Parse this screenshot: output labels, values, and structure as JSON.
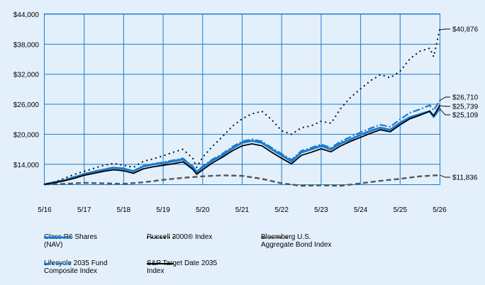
{
  "chart_data": {
    "type": "line",
    "x_ticks": [
      "5/16",
      "5/17",
      "5/18",
      "5/19",
      "5/20",
      "5/21",
      "5/22",
      "5/23",
      "5/24",
      "5/25",
      "5/26"
    ],
    "y_ticks": [
      "$14,000",
      "$20,000",
      "$26,000",
      "$32,000",
      "$38,000",
      "$44,000"
    ],
    "y_tick_values": [
      14000,
      20000,
      26000,
      32000,
      38000,
      44000
    ],
    "ylim": [
      10000,
      44000
    ],
    "xlim": [
      0,
      10
    ],
    "grid": true,
    "series": [
      {
        "key": "classr6",
        "name": "Class R6 Shares (NAV)",
        "name_lines": [
          "Class R6 Shares",
          "(NAV)"
        ],
        "color": "#1a7bd0",
        "style": "solid",
        "end_label": "$25,109",
        "x": [
          0,
          0.25,
          0.5,
          0.75,
          1,
          1.25,
          1.5,
          1.75,
          2,
          2.25,
          2.5,
          2.75,
          3,
          3.25,
          3.5,
          3.75,
          3.85,
          4,
          4.25,
          4.5,
          4.75,
          5,
          5.25,
          5.5,
          5.75,
          6,
          6.25,
          6.5,
          6.75,
          7,
          7.25,
          7.5,
          7.75,
          8,
          8.25,
          8.5,
          8.75,
          9,
          9.25,
          9.5,
          9.75,
          9.85,
          10
        ],
        "y": [
          10000,
          10400,
          10800,
          11400,
          12000,
          12500,
          12900,
          13300,
          13100,
          12600,
          13600,
          14000,
          14200,
          14600,
          15000,
          13400,
          12400,
          13400,
          14800,
          15800,
          17200,
          18300,
          18700,
          18300,
          17000,
          15800,
          14600,
          16400,
          17000,
          17700,
          17000,
          18200,
          19000,
          19900,
          20700,
          21300,
          20900,
          22300,
          23400,
          24000,
          24600,
          23500,
          25109
        ]
      },
      {
        "key": "russell",
        "name": "Russell 3000® Index",
        "name_lines": [
          "Russell 3000® Index"
        ],
        "color": "#111111",
        "style": "dotted",
        "end_label": "$40,876",
        "x": [
          0,
          0.25,
          0.5,
          0.75,
          1,
          1.25,
          1.5,
          1.75,
          2,
          2.25,
          2.5,
          2.75,
          3,
          3.25,
          3.5,
          3.75,
          3.85,
          4,
          4.25,
          4.5,
          4.75,
          5,
          5.25,
          5.5,
          5.75,
          6,
          6.25,
          6.5,
          6.75,
          7,
          7.25,
          7.5,
          7.75,
          8,
          8.25,
          8.5,
          8.75,
          9,
          9.25,
          9.5,
          9.75,
          9.85,
          10
        ],
        "y": [
          10000,
          10500,
          11200,
          12000,
          12600,
          13200,
          13800,
          14200,
          13800,
          13400,
          14600,
          15100,
          15700,
          16400,
          17000,
          15200,
          13400,
          15400,
          17600,
          19500,
          21600,
          23100,
          24100,
          24600,
          22900,
          20700,
          20000,
          21300,
          21700,
          22600,
          22200,
          25200,
          27400,
          29100,
          30700,
          31900,
          31300,
          32600,
          35100,
          36600,
          37200,
          35500,
          40876
        ]
      },
      {
        "key": "bloomberg",
        "name": "Bloomberg U.S. Aggregate Bond Index",
        "name_lines": [
          "Bloomberg U.S.",
          "Aggregate Bond Index"
        ],
        "color": "#555555",
        "style": "dashed",
        "end_label": "$11,836",
        "x": [
          0,
          0.5,
          1,
          1.5,
          2,
          2.5,
          3,
          3.5,
          4,
          4.5,
          5,
          5.5,
          6,
          6.5,
          7,
          7.5,
          8,
          8.5,
          9,
          9.5,
          10
        ],
        "y": [
          10000,
          10100,
          10300,
          10200,
          10100,
          10400,
          10900,
          11300,
          11600,
          11800,
          11700,
          11100,
          10200,
          9700,
          9800,
          9700,
          10200,
          10700,
          11100,
          11600,
          11836
        ]
      },
      {
        "key": "lifecycle",
        "name": "Lifecycle 2035 Fund Composite Index",
        "name_lines": [
          "Lifecycle 2035 Fund",
          "Composite Index"
        ],
        "color": "#1a7bd0",
        "style": "dashdot",
        "end_label": "$26,710",
        "x": [
          0,
          0.25,
          0.5,
          0.75,
          1,
          1.25,
          1.5,
          1.75,
          2,
          2.25,
          2.5,
          2.75,
          3,
          3.25,
          3.5,
          3.75,
          3.85,
          4,
          4.25,
          4.5,
          4.75,
          5,
          5.25,
          5.5,
          5.75,
          6,
          6.25,
          6.5,
          6.75,
          7,
          7.25,
          7.5,
          7.75,
          8,
          8.25,
          8.5,
          8.75,
          9,
          9.25,
          9.5,
          9.75,
          9.85,
          10
        ],
        "y": [
          10000,
          10450,
          10900,
          11500,
          12100,
          12600,
          13000,
          13400,
          13200,
          12700,
          13700,
          14100,
          14400,
          14800,
          15200,
          13600,
          12600,
          13600,
          15000,
          16100,
          17500,
          18600,
          19000,
          18600,
          17300,
          16100,
          14900,
          16700,
          17300,
          18000,
          17300,
          18600,
          19500,
          20400,
          21200,
          21900,
          21500,
          23000,
          24300,
          25000,
          25800,
          24800,
          26710
        ]
      },
      {
        "key": "sp",
        "name": "S&P Target Date 2035 Index",
        "name_lines": [
          "S&P Target Date 2035",
          "Index"
        ],
        "color": "#000000",
        "style": "solid",
        "end_label": "$25,739",
        "x": [
          0,
          0.25,
          0.5,
          0.75,
          1,
          1.25,
          1.5,
          1.75,
          2,
          2.25,
          2.5,
          2.75,
          3,
          3.25,
          3.5,
          3.75,
          3.85,
          4,
          4.25,
          4.5,
          4.75,
          5,
          5.25,
          5.5,
          5.75,
          6,
          6.25,
          6.5,
          6.75,
          7,
          7.25,
          7.5,
          7.75,
          8,
          8.25,
          8.5,
          8.75,
          9,
          9.25,
          9.5,
          9.75,
          9.85,
          10
        ],
        "y": [
          10000,
          10350,
          10700,
          11200,
          11800,
          12200,
          12600,
          12900,
          12700,
          12200,
          13100,
          13500,
          13800,
          14100,
          14500,
          13000,
          12000,
          12900,
          14300,
          15400,
          16700,
          17700,
          18100,
          17700,
          16400,
          15200,
          14100,
          15800,
          16400,
          17100,
          16500,
          17700,
          18600,
          19400,
          20200,
          20900,
          20500,
          21900,
          23100,
          23800,
          24600,
          23700,
          25739
        ]
      }
    ]
  }
}
